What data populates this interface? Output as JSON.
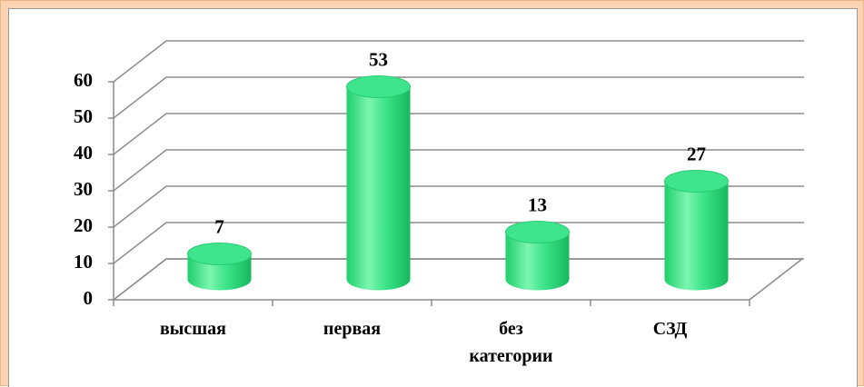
{
  "chart_data": {
    "type": "bar3d",
    "categories": [
      "высшая",
      "первая",
      "без категории",
      "СЗД"
    ],
    "values": [
      7,
      53,
      13,
      27
    ],
    "color": "#33e383",
    "ylim": [
      0,
      60
    ],
    "yticks": [
      0,
      10,
      20,
      30,
      40,
      50,
      60
    ],
    "grid": true
  }
}
